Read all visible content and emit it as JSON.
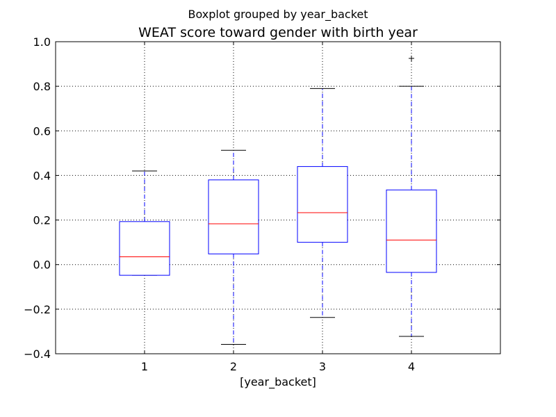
{
  "chart_data": {
    "type": "box",
    "suptitle": "Boxplot grouped by year_backet",
    "title": "WEAT score toward gender with birth year",
    "xlabel": "[year_backet]",
    "ylabel": "",
    "categories": [
      "1",
      "2",
      "3",
      "4"
    ],
    "ylim": [
      -0.4,
      1.0
    ],
    "yticks": [
      -0.4,
      -0.2,
      0.0,
      0.2,
      0.4,
      0.6,
      0.8,
      1.0
    ],
    "ytick_labels": [
      "−0.4",
      "−0.2",
      "0.0",
      "0.2",
      "0.4",
      "0.6",
      "0.8",
      "1.0"
    ],
    "grid": true,
    "boxes": [
      {
        "category": "1",
        "whisker_low": -0.048,
        "q1": -0.048,
        "median": 0.035,
        "q3": 0.193,
        "whisker_high": 0.42,
        "outliers": []
      },
      {
        "category": "2",
        "whisker_low": -0.358,
        "q1": 0.048,
        "median": 0.183,
        "q3": 0.38,
        "whisker_high": 0.513,
        "outliers": []
      },
      {
        "category": "3",
        "whisker_low": -0.237,
        "q1": 0.1,
        "median": 0.233,
        "q3": 0.44,
        "whisker_high": 0.79,
        "outliers": []
      },
      {
        "category": "4",
        "whisker_low": -0.322,
        "q1": -0.035,
        "median": 0.11,
        "q3": 0.335,
        "whisker_high": 0.8,
        "outliers": [
          0.925
        ]
      }
    ],
    "colors": {
      "box": "#0000ff",
      "median": "#ff0000",
      "whisker": "#0000ff",
      "cap": "#000000",
      "flier": "#000000",
      "grid": "#000000"
    }
  }
}
